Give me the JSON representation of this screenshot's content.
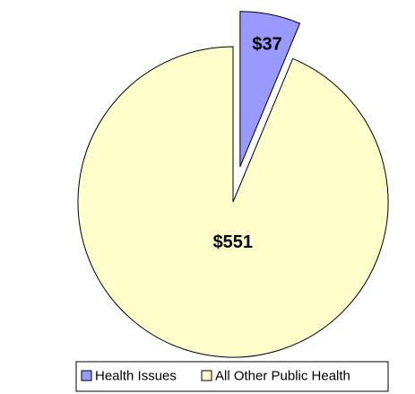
{
  "chart_data": {
    "type": "pie",
    "categories": [
      "Health Issues",
      "All Other Public Health"
    ],
    "values": [
      37,
      551
    ],
    "value_labels": [
      "$37",
      "$551"
    ],
    "colors": [
      "#9999ff",
      "#ffffcc"
    ],
    "exploded": [
      true,
      false
    ],
    "legend": "bottom"
  }
}
